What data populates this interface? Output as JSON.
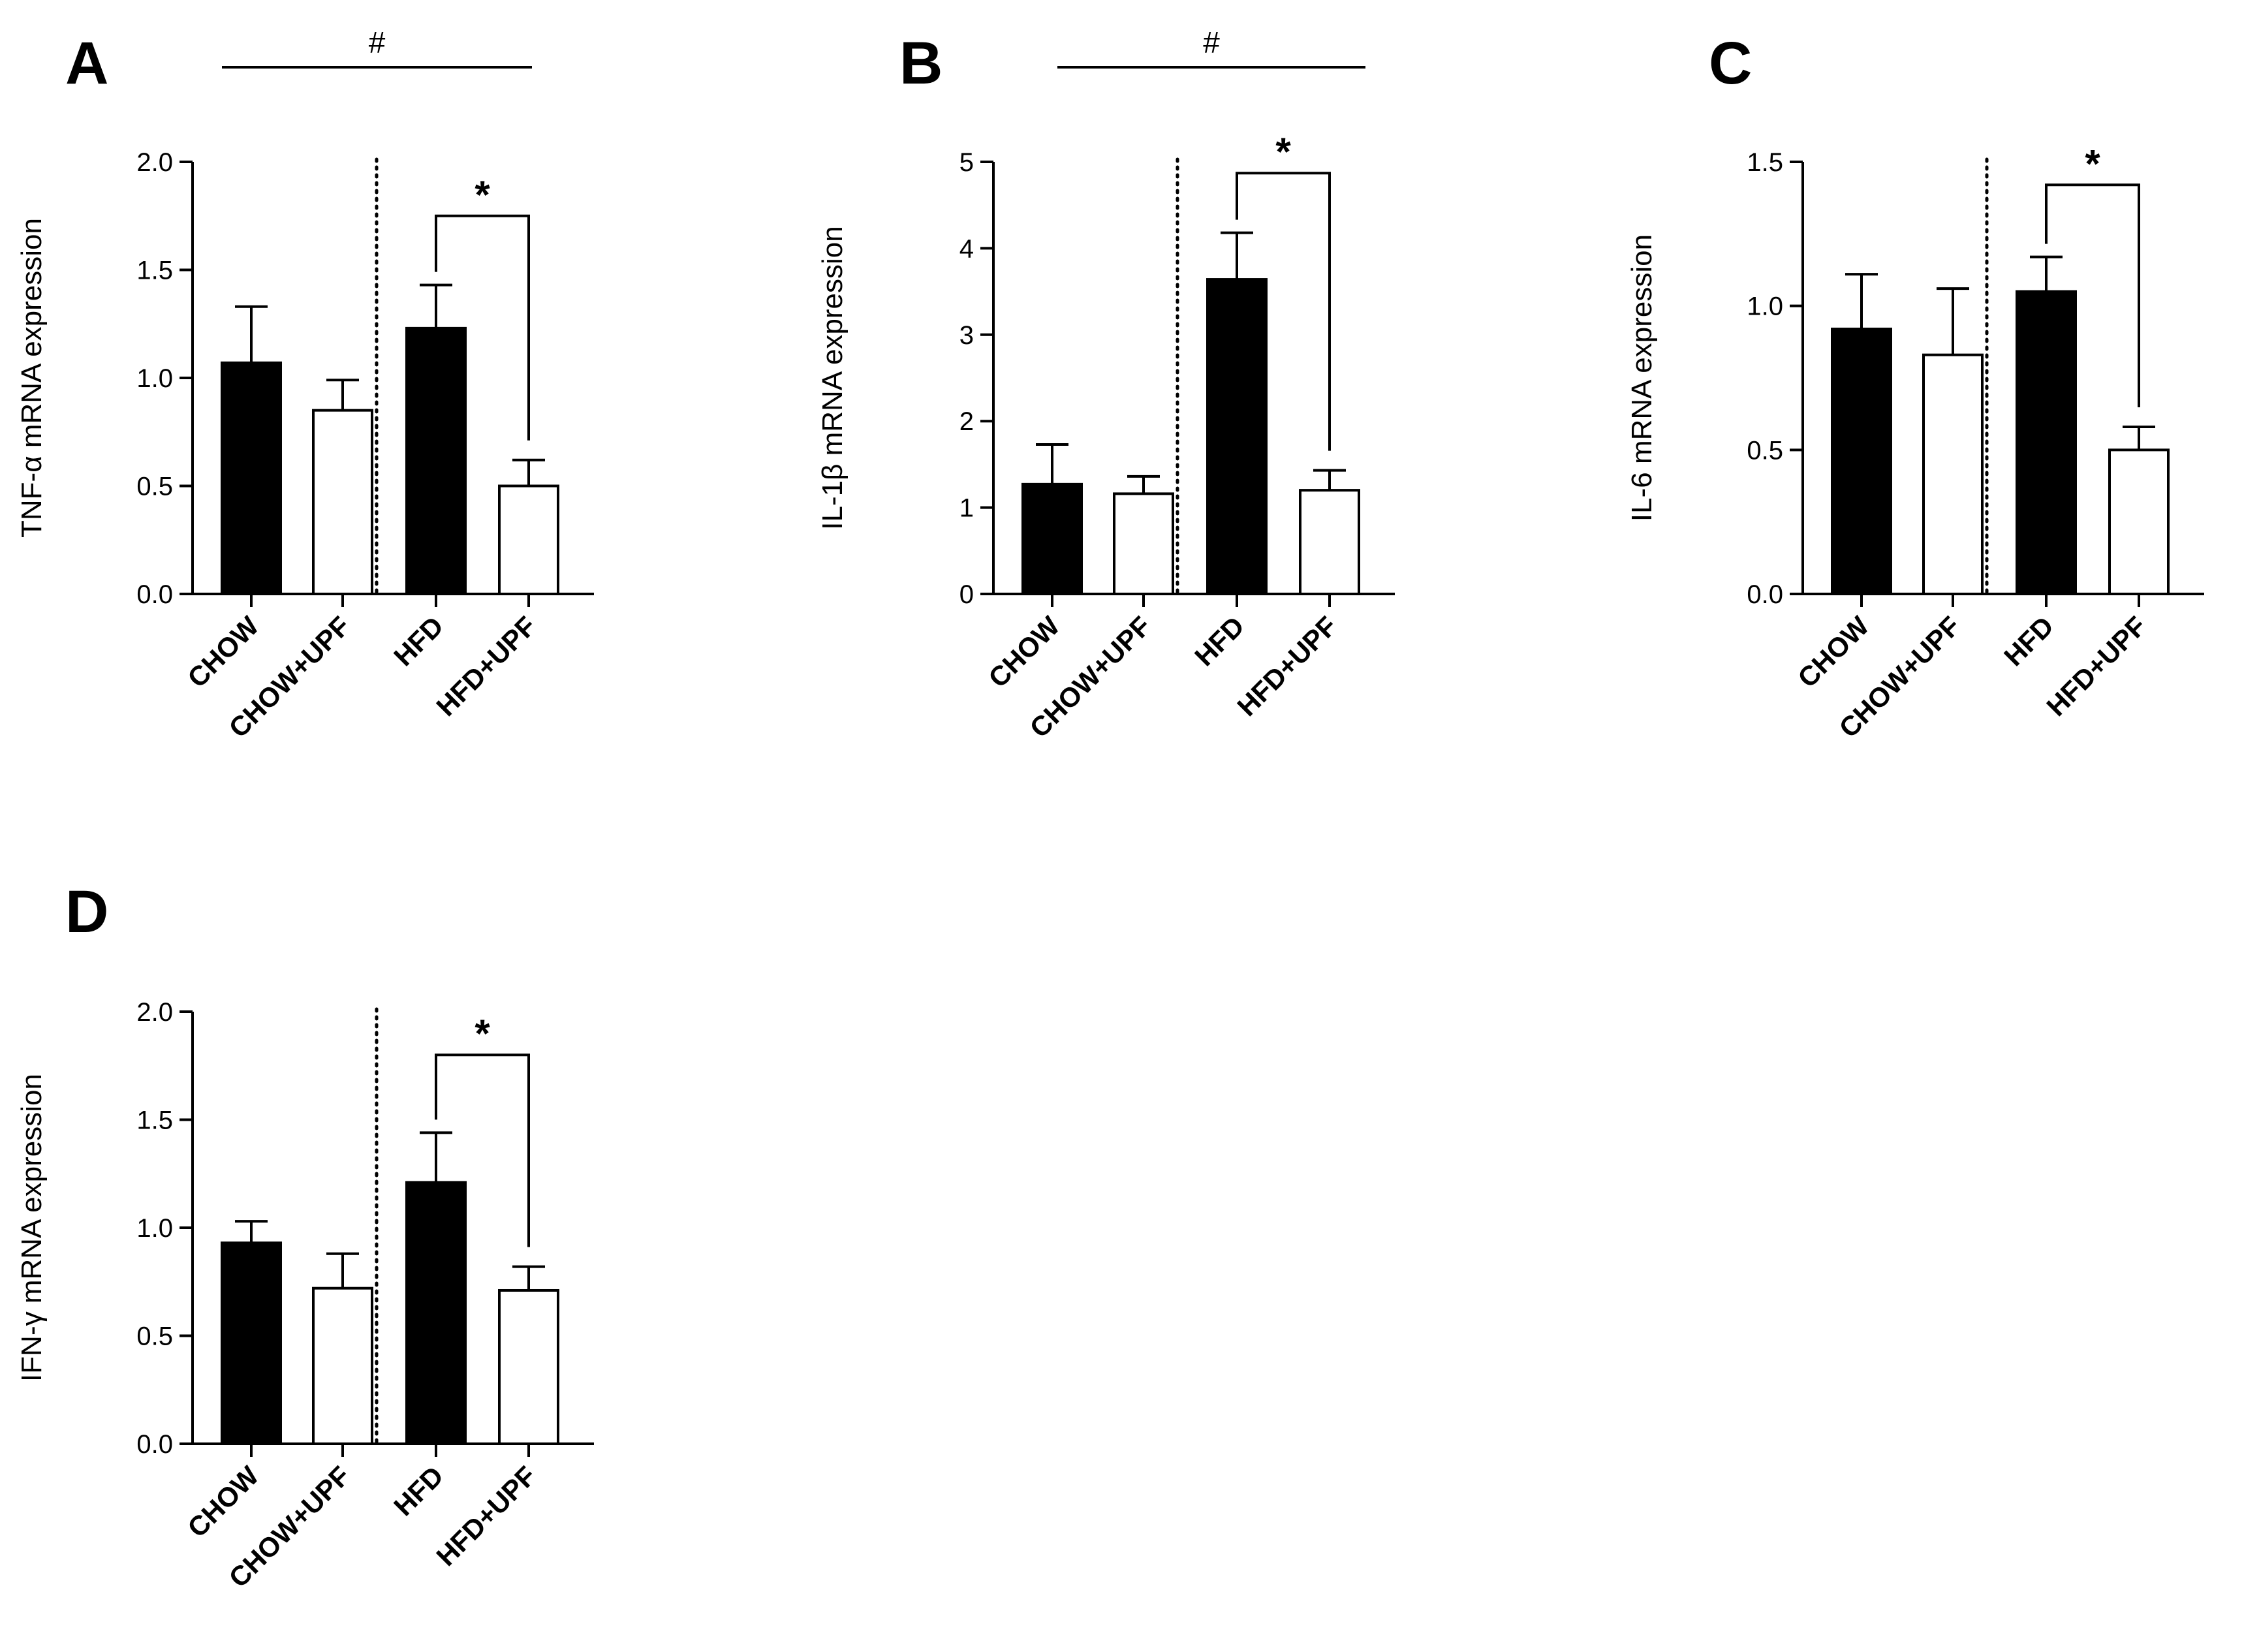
{
  "figure": {
    "bar_colors": {
      "filled": "#000000",
      "open": "#ffffff"
    },
    "axis_color": "#000000"
  },
  "chart_data": [
    {
      "panel": "A",
      "type": "bar",
      "ylabel": "TNF-α mRNA expression",
      "xlabel": "",
      "ylim": [
        0,
        2.0
      ],
      "yticks": [
        "0.0",
        "0.5",
        "1.0",
        "1.5",
        "2.0"
      ],
      "categories": [
        "CHOW",
        "CHOW+UPF",
        "HFD",
        "HFD+UPF"
      ],
      "values": [
        1.07,
        0.85,
        1.23,
        0.5
      ],
      "errors": [
        0.26,
        0.14,
        0.2,
        0.12
      ],
      "fills": [
        "filled",
        "open",
        "filled",
        "open"
      ],
      "group_divider": "between CHOW+UPF and HFD",
      "annotations": [
        {
          "type": "significance",
          "label": "*",
          "between": [
            "HFD",
            "HFD+UPF"
          ],
          "y": 1.75
        },
        {
          "type": "group_bar",
          "label": "#",
          "above": "panel"
        }
      ]
    },
    {
      "panel": "B",
      "type": "bar",
      "ylabel": "IL-1β mRNA expression",
      "xlabel": "",
      "ylim": [
        0,
        5
      ],
      "yticks": [
        "0",
        "1",
        "2",
        "3",
        "4",
        "5"
      ],
      "categories": [
        "CHOW",
        "CHOW+UPF",
        "HFD",
        "HFD+UPF"
      ],
      "values": [
        1.27,
        1.16,
        3.64,
        1.2
      ],
      "errors": [
        0.46,
        0.2,
        0.54,
        0.23
      ],
      "fills": [
        "filled",
        "open",
        "filled",
        "open"
      ],
      "group_divider": "between CHOW+UPF and HFD",
      "annotations": [
        {
          "type": "significance",
          "label": "*",
          "between": [
            "HFD",
            "HFD+UPF"
          ],
          "y": 4.87
        },
        {
          "type": "group_bar",
          "label": "#",
          "above": "panel"
        }
      ]
    },
    {
      "panel": "C",
      "type": "bar",
      "ylabel": "IL-6 mRNA expression",
      "xlabel": "",
      "ylim": [
        0,
        1.5
      ],
      "yticks": [
        "0.0",
        "0.5",
        "1.0",
        "1.5"
      ],
      "categories": [
        "CHOW",
        "CHOW+UPF",
        "HFD",
        "HFD+UPF"
      ],
      "values": [
        0.92,
        0.83,
        1.05,
        0.5
      ],
      "errors": [
        0.19,
        0.23,
        0.12,
        0.08
      ],
      "fills": [
        "filled",
        "open",
        "filled",
        "open"
      ],
      "group_divider": "between CHOW+UPF and HFD",
      "annotations": [
        {
          "type": "significance",
          "label": "*",
          "between": [
            "HFD",
            "HFD+UPF"
          ],
          "y": 1.42
        }
      ]
    },
    {
      "panel": "D",
      "type": "bar",
      "ylabel": "IFN-γ mRNA expression",
      "xlabel": "",
      "ylim": [
        0,
        2.0
      ],
      "yticks": [
        "0.0",
        "0.5",
        "1.0",
        "1.5",
        "2.0"
      ],
      "categories": [
        "CHOW",
        "CHOW+UPF",
        "HFD",
        "HFD+UPF"
      ],
      "values": [
        0.93,
        0.72,
        1.21,
        0.71
      ],
      "errors": [
        0.1,
        0.16,
        0.23,
        0.11
      ],
      "fills": [
        "filled",
        "open",
        "filled",
        "open"
      ],
      "group_divider": "between CHOW+UPF and HFD",
      "annotations": [
        {
          "type": "significance",
          "label": "*",
          "between": [
            "HFD",
            "HFD+UPF"
          ],
          "y": 1.8
        }
      ]
    }
  ]
}
